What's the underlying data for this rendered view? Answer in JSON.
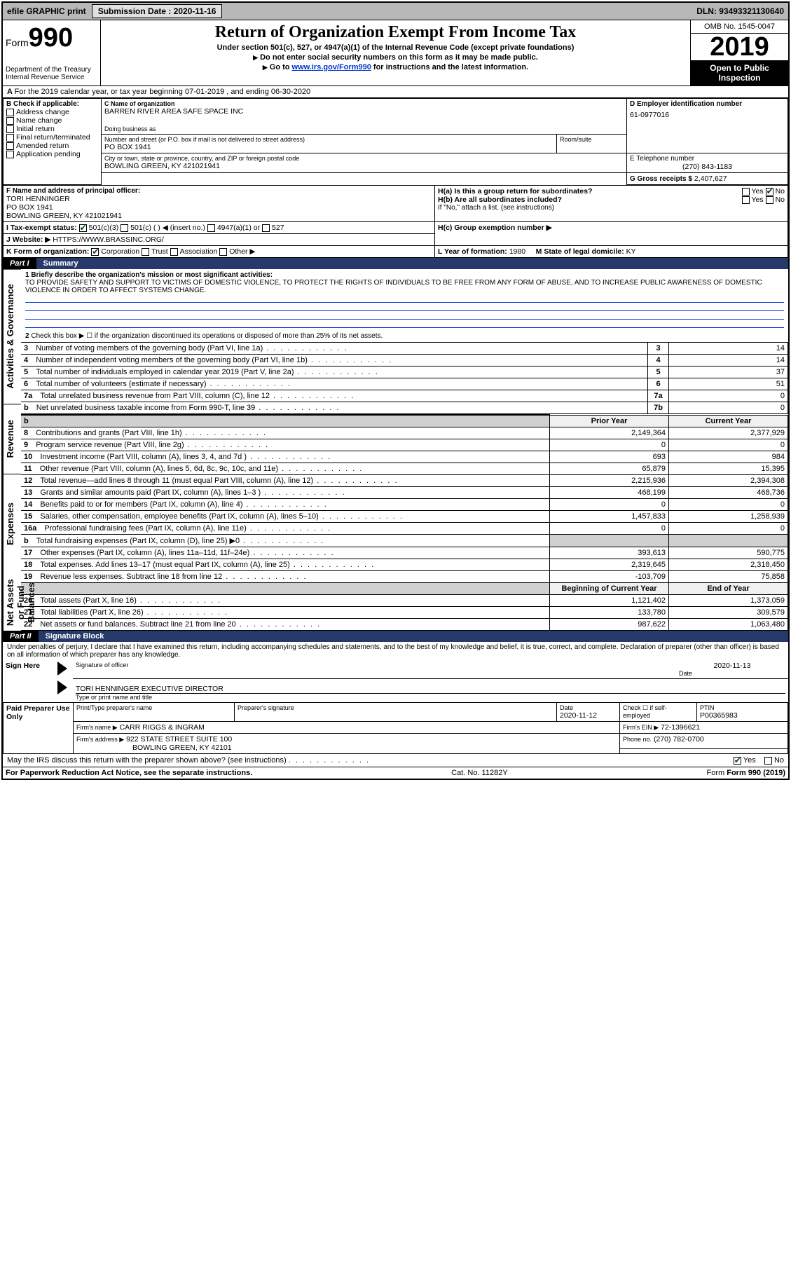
{
  "topbar": {
    "efile": "efile GRAPHIC print",
    "sub_label": "Submission Date : 2020-11-16",
    "dln": "DLN: 93493321130640"
  },
  "header": {
    "form_label": "Form",
    "form_no": "990",
    "dept": "Department of the Treasury",
    "irs": "Internal Revenue Service",
    "title": "Return of Organization Exempt From Income Tax",
    "sub1": "Under section 501(c), 527, or 4947(a)(1) of the Internal Revenue Code (except private foundations)",
    "sub2": "Do not enter social security numbers on this form as it may be made public.",
    "sub3_pre": "Go to ",
    "sub3_link": "www.irs.gov/Form990",
    "sub3_post": " for instructions and the latest information.",
    "omb": "OMB No. 1545-0047",
    "year": "2019",
    "open": "Open to Public Inspection"
  },
  "A": {
    "text": "For the 2019 calendar year, or tax year beginning 07-01-2019   , and ending 06-30-2020"
  },
  "B": {
    "label": "B Check if applicable:",
    "items": [
      "Address change",
      "Name change",
      "Initial return",
      "Final return/terminated",
      "Amended return",
      "Application pending"
    ]
  },
  "C": {
    "name_label": "C Name of organization",
    "name": "BARREN RIVER AREA SAFE SPACE INC",
    "dba_label": "Doing business as",
    "addr_label": "Number and street (or P.O. box if mail is not delivered to street address)",
    "room_label": "Room/suite",
    "addr": "PO BOX 1941",
    "city_label": "City or town, state or province, country, and ZIP or foreign postal code",
    "city": "BOWLING GREEN, KY  421021941"
  },
  "D": {
    "label": "D Employer identification number",
    "val": "61-0977016"
  },
  "E": {
    "label": "E Telephone number",
    "val": "(270) 843-1183"
  },
  "G": {
    "label": "G Gross receipts $",
    "val": "2,407,627"
  },
  "F": {
    "label": "F  Name and address of principal officer:",
    "name": "TORI HENNINGER",
    "addr1": "PO BOX 1941",
    "addr2": "BOWLING GREEN, KY  421021941"
  },
  "H": {
    "a": "H(a)  Is this a group return for subordinates?",
    "b": "H(b)  Are all subordinates included?",
    "b_note": "If \"No,\" attach a list. (see instructions)",
    "c": "H(c)  Group exemption number ▶",
    "yes": "Yes",
    "no": "No"
  },
  "I": {
    "label": "I   Tax-exempt status:",
    "opts": [
      "501(c)(3)",
      "501(c) (  ) ◀ (insert no.)",
      "4947(a)(1) or",
      "527"
    ]
  },
  "J": {
    "label": "J   Website: ▶",
    "val": "HTTPS://WWW.BRASSINC.ORG/"
  },
  "K": {
    "label": "K Form of organization:",
    "opts": [
      "Corporation",
      "Trust",
      "Association",
      "Other ▶"
    ]
  },
  "L": {
    "label": "L Year of formation:",
    "val": "1980"
  },
  "M": {
    "label": "M State of legal domicile:",
    "val": "KY"
  },
  "part1": {
    "label": "Part I",
    "title": "Summary"
  },
  "summary": {
    "q1_label": "1  Briefly describe the organization's mission or most significant activities:",
    "q1_text": "TO PROVIDE SAFETY AND SUPPORT TO VICTIMS OF DOMESTIC VIOLENCE, TO PROTECT THE RIGHTS OF INDIVIDUALS TO BE FREE FROM ANY FORM OF ABUSE, AND TO INCREASE PUBLIC AWARENESS OF DOMESTIC VIOLENCE IN ORDER TO AFFECT SYSTEMS CHANGE.",
    "q2": "Check this box ▶ ☐ if the organization discontinued its operations or disposed of more than 25% of its net assets.",
    "sidetab_activities": "Activities & Governance",
    "sidetab_revenue": "Revenue",
    "sidetab_expenses": "Expenses",
    "sidetab_netassets": "Net Assets or Fund Balances",
    "lines_gov": [
      {
        "n": "3",
        "d": "Number of voting members of the governing body (Part VI, line 1a)",
        "box": "3",
        "v": "14"
      },
      {
        "n": "4",
        "d": "Number of independent voting members of the governing body (Part VI, line 1b)",
        "box": "4",
        "v": "14"
      },
      {
        "n": "5",
        "d": "Total number of individuals employed in calendar year 2019 (Part V, line 2a)",
        "box": "5",
        "v": "37"
      },
      {
        "n": "6",
        "d": "Total number of volunteers (estimate if necessary)",
        "box": "6",
        "v": "51"
      },
      {
        "n": "7a",
        "d": "Total unrelated business revenue from Part VIII, column (C), line 12",
        "box": "7a",
        "v": "0"
      },
      {
        "n": "b",
        "d": "Net unrelated business taxable income from Form 990-T, line 39",
        "box": "7b",
        "v": "0"
      }
    ],
    "col_py": "Prior Year",
    "col_cy": "Current Year",
    "lines_rev": [
      {
        "n": "8",
        "d": "Contributions and grants (Part VIII, line 1h)",
        "py": "2,149,364",
        "cy": "2,377,929"
      },
      {
        "n": "9",
        "d": "Program service revenue (Part VIII, line 2g)",
        "py": "0",
        "cy": "0"
      },
      {
        "n": "10",
        "d": "Investment income (Part VIII, column (A), lines 3, 4, and 7d )",
        "py": "693",
        "cy": "984"
      },
      {
        "n": "11",
        "d": "Other revenue (Part VIII, column (A), lines 5, 6d, 8c, 9c, 10c, and 11e)",
        "py": "65,879",
        "cy": "15,395"
      },
      {
        "n": "12",
        "d": "Total revenue—add lines 8 through 11 (must equal Part VIII, column (A), line 12)",
        "py": "2,215,936",
        "cy": "2,394,308"
      }
    ],
    "lines_exp": [
      {
        "n": "13",
        "d": "Grants and similar amounts paid (Part IX, column (A), lines 1–3 )",
        "py": "468,199",
        "cy": "468,736"
      },
      {
        "n": "14",
        "d": "Benefits paid to or for members (Part IX, column (A), line 4)",
        "py": "0",
        "cy": "0"
      },
      {
        "n": "15",
        "d": "Salaries, other compensation, employee benefits (Part IX, column (A), lines 5–10)",
        "py": "1,457,833",
        "cy": "1,258,939"
      },
      {
        "n": "16a",
        "d": "Professional fundraising fees (Part IX, column (A), line 11e)",
        "py": "0",
        "cy": "0"
      },
      {
        "n": "b",
        "d": "Total fundraising expenses (Part IX, column (D), line 25) ▶0",
        "py": "",
        "cy": "",
        "shade": true
      },
      {
        "n": "17",
        "d": "Other expenses (Part IX, column (A), lines 11a–11d, 11f–24e)",
        "py": "393,613",
        "cy": "590,775"
      },
      {
        "n": "18",
        "d": "Total expenses. Add lines 13–17 (must equal Part IX, column (A), line 25)",
        "py": "2,319,645",
        "cy": "2,318,450"
      },
      {
        "n": "19",
        "d": "Revenue less expenses. Subtract line 18 from line 12",
        "py": "-103,709",
        "cy": "75,858"
      }
    ],
    "col_bcy": "Beginning of Current Year",
    "col_eoy": "End of Year",
    "lines_na": [
      {
        "n": "20",
        "d": "Total assets (Part X, line 16)",
        "py": "1,121,402",
        "cy": "1,373,059"
      },
      {
        "n": "21",
        "d": "Total liabilities (Part X, line 26)",
        "py": "133,780",
        "cy": "309,579"
      },
      {
        "n": "22",
        "d": "Net assets or fund balances. Subtract line 21 from line 20",
        "py": "987,622",
        "cy": "1,063,480"
      }
    ]
  },
  "part2": {
    "label": "Part II",
    "title": "Signature Block"
  },
  "sig": {
    "perjury": "Under penalties of perjury, I declare that I have examined this return, including accompanying schedules and statements, and to the best of my knowledge and belief, it is true, correct, and complete. Declaration of preparer (other than officer) is based on all information of which preparer has any knowledge.",
    "sign_here": "Sign Here",
    "sig_officer": "Signature of officer",
    "date": "Date",
    "date_val": "2020-11-13",
    "name_title": "TORI HENNINGER  EXECUTIVE DIRECTOR",
    "name_title_label": "Type or print name and title",
    "paid": "Paid Preparer Use Only",
    "prep_name_label": "Print/Type preparer's name",
    "prep_sig_label": "Preparer's signature",
    "prep_date_label": "Date",
    "prep_date": "2020-11-12",
    "check_self": "Check ☐ if self-employed",
    "ptin_label": "PTIN",
    "ptin": "P00365983",
    "firm_name_label": "Firm's name    ▶",
    "firm_name": "CARR RIGGS & INGRAM",
    "firm_ein_label": "Firm's EIN ▶",
    "firm_ein": "72-1396621",
    "firm_addr_label": "Firm's address ▶",
    "firm_addr1": "922 STATE STREET SUITE 100",
    "firm_addr2": "BOWLING GREEN, KY  42101",
    "phone_label": "Phone no.",
    "phone": "(270) 782-0700",
    "discuss": "May the IRS discuss this return with the preparer shown above? (see instructions)"
  },
  "footer": {
    "pra": "For Paperwork Reduction Act Notice, see the separate instructions.",
    "cat": "Cat. No. 11282Y",
    "form": "Form 990 (2019)"
  },
  "colors": {
    "topbar_bg": "#b8b8b8",
    "part_title_bg": "#253a6b",
    "link": "#0033cc",
    "shade": "#d0d0d0"
  }
}
